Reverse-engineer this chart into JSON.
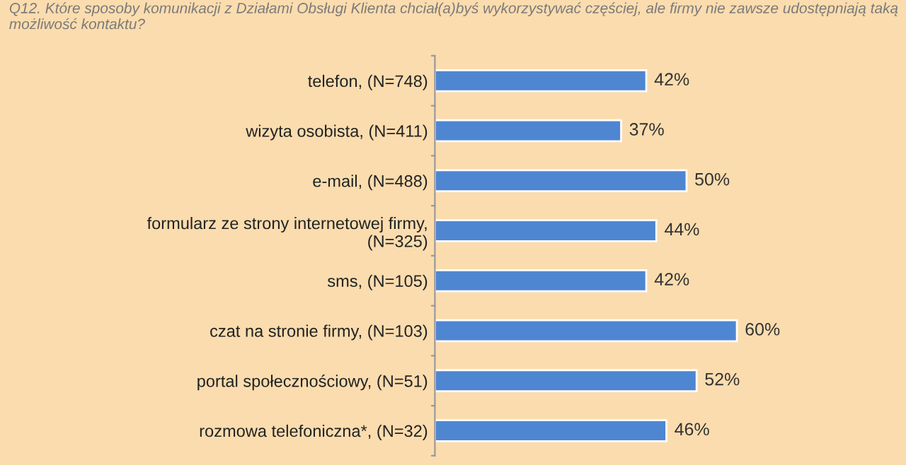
{
  "chart_data": {
    "type": "bar",
    "orientation": "horizontal",
    "title": "Q12. Które sposoby komunikacji z Działami Obsługi Klienta chciał(a)byś wykorzystywać częściej, ale firmy nie zawsze udostępniają taką możliwość kontaktu?",
    "categories": [
      "telefon, (N=748)",
      "wizyta osobista, (N=411)",
      "e-mail, (N=488)",
      "formularz ze strony internetowej firmy, (N=325)",
      "sms, (N=105)",
      "czat na stronie firmy, (N=103)",
      "portal społecznościowy, (N=51)",
      "rozmowa telefoniczna*, (N=32)"
    ],
    "values": [
      42,
      37,
      50,
      44,
      42,
      60,
      52,
      46
    ],
    "value_labels": [
      "42%",
      "37%",
      "50%",
      "44%",
      "42%",
      "60%",
      "52%",
      "46%"
    ],
    "color": "#4f86d1"
  }
}
